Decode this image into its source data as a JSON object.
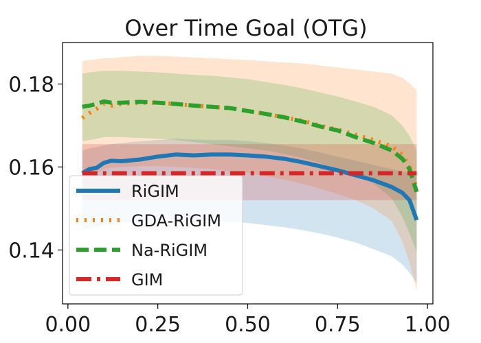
{
  "chart_data": {
    "type": "line",
    "title": "Over Time Goal (OTG)",
    "xlabel": "",
    "ylabel": "",
    "xlim": [
      -0.015,
      1.015
    ],
    "ylim": [
      0.127,
      0.19
    ],
    "xticks": [
      0.0,
      0.25,
      0.5,
      0.75,
      1.0
    ],
    "xtick_labels": [
      "0.00",
      "0.25",
      "0.50",
      "0.75",
      "1.00"
    ],
    "yticks": [
      0.14,
      0.16,
      0.18
    ],
    "ytick_labels": [
      "0.14",
      "0.16",
      "0.18"
    ],
    "grid": false,
    "legend_position": "lower-left",
    "series": [
      {
        "name": "RiGIM",
        "color": "#1f77b4",
        "style": "solid",
        "x": [
          0.04,
          0.06,
          0.08,
          0.1,
          0.12,
          0.15,
          0.2,
          0.25,
          0.3,
          0.35,
          0.4,
          0.45,
          0.5,
          0.55,
          0.6,
          0.65,
          0.7,
          0.75,
          0.8,
          0.85,
          0.9,
          0.93,
          0.95,
          0.97
        ],
        "y": [
          0.1585,
          0.1595,
          0.1598,
          0.161,
          0.1615,
          0.1614,
          0.1618,
          0.1625,
          0.163,
          0.1628,
          0.163,
          0.163,
          0.1628,
          0.1625,
          0.162,
          0.1612,
          0.1602,
          0.1592,
          0.158,
          0.1568,
          0.1552,
          0.1538,
          0.152,
          0.1472
        ],
        "band_upper": [
          0.164,
          0.1645,
          0.1648,
          0.1652,
          0.1655,
          0.1658,
          0.1662,
          0.1665,
          0.1668,
          0.1666,
          0.1665,
          0.1665,
          0.1662,
          0.1658,
          0.1652,
          0.1645,
          0.1635,
          0.1625,
          0.1615,
          0.1605,
          0.1595,
          0.159,
          0.1585,
          0.158
        ],
        "band_lower": [
          0.145,
          0.1452,
          0.1455,
          0.146,
          0.1462,
          0.1465,
          0.1468,
          0.1472,
          0.1475,
          0.1473,
          0.147,
          0.1468,
          0.1465,
          0.146,
          0.1455,
          0.1448,
          0.144,
          0.143,
          0.1418,
          0.1402,
          0.1385,
          0.1365,
          0.1345,
          0.132
        ]
      },
      {
        "name": "GDA-RiGIM",
        "color": "#ff7f0e",
        "style": "dotted",
        "x": [
          0.04,
          0.06,
          0.08,
          0.1,
          0.12,
          0.15,
          0.2,
          0.25,
          0.3,
          0.35,
          0.4,
          0.45,
          0.5,
          0.55,
          0.6,
          0.65,
          0.7,
          0.75,
          0.8,
          0.85,
          0.9,
          0.93,
          0.95,
          0.97
        ],
        "y": [
          0.1718,
          0.173,
          0.174,
          0.1752,
          0.1748,
          0.1752,
          0.1755,
          0.1755,
          0.1752,
          0.1748,
          0.1745,
          0.1742,
          0.1735,
          0.1728,
          0.172,
          0.1712,
          0.17,
          0.169,
          0.1678,
          0.1665,
          0.165,
          0.163,
          0.16,
          0.1548
        ],
        "band_upper": [
          0.1855,
          0.1858,
          0.186,
          0.1862,
          0.1862,
          0.1865,
          0.1868,
          0.1868,
          0.1866,
          0.1864,
          0.1862,
          0.186,
          0.1858,
          0.1855,
          0.1852,
          0.185,
          0.1845,
          0.184,
          0.1835,
          0.183,
          0.1825,
          0.1815,
          0.1802,
          0.1785
        ],
        "band_lower": [
          0.1575,
          0.158,
          0.1585,
          0.1595,
          0.1598,
          0.16,
          0.1602,
          0.1602,
          0.16,
          0.1598,
          0.1595,
          0.159,
          0.1585,
          0.1578,
          0.157,
          0.156,
          0.1548,
          0.1535,
          0.152,
          0.15,
          0.147,
          0.142,
          0.137,
          0.13
        ]
      },
      {
        "name": "Na-RiGIM",
        "color": "#2ca02c",
        "style": "dashed",
        "x": [
          0.04,
          0.06,
          0.08,
          0.1,
          0.12,
          0.15,
          0.2,
          0.25,
          0.3,
          0.35,
          0.4,
          0.45,
          0.5,
          0.55,
          0.6,
          0.65,
          0.7,
          0.75,
          0.8,
          0.85,
          0.9,
          0.93,
          0.95,
          0.97
        ],
        "y": [
          0.1745,
          0.1748,
          0.1752,
          0.1758,
          0.1755,
          0.1755,
          0.1757,
          0.1755,
          0.1752,
          0.1748,
          0.1745,
          0.1742,
          0.1735,
          0.1728,
          0.172,
          0.171,
          0.1698,
          0.1688,
          0.1672,
          0.1658,
          0.164,
          0.162,
          0.1595,
          0.154
        ],
        "band_upper": [
          0.1825,
          0.1828,
          0.183,
          0.1832,
          0.1832,
          0.1832,
          0.183,
          0.1828,
          0.1825,
          0.1822,
          0.182,
          0.1816,
          0.1812,
          0.1805,
          0.1798,
          0.179,
          0.178,
          0.177,
          0.1758,
          0.1745,
          0.1725,
          0.17,
          0.1675,
          0.164
        ],
        "band_lower": [
          0.1662,
          0.1665,
          0.1668,
          0.1672,
          0.1672,
          0.1672,
          0.167,
          0.1668,
          0.1665,
          0.166,
          0.1655,
          0.165,
          0.1645,
          0.164,
          0.1632,
          0.1622,
          0.161,
          0.1595,
          0.158,
          0.156,
          0.1525,
          0.148,
          0.144,
          0.1395
        ]
      },
      {
        "name": "GIM",
        "color": "#d62728",
        "style": "dashdot",
        "x": [
          0.04,
          0.97
        ],
        "y": [
          0.1585,
          0.1585
        ],
        "band_upper": [
          0.1655,
          0.1655
        ],
        "band_lower": [
          0.152,
          0.152
        ]
      }
    ]
  }
}
